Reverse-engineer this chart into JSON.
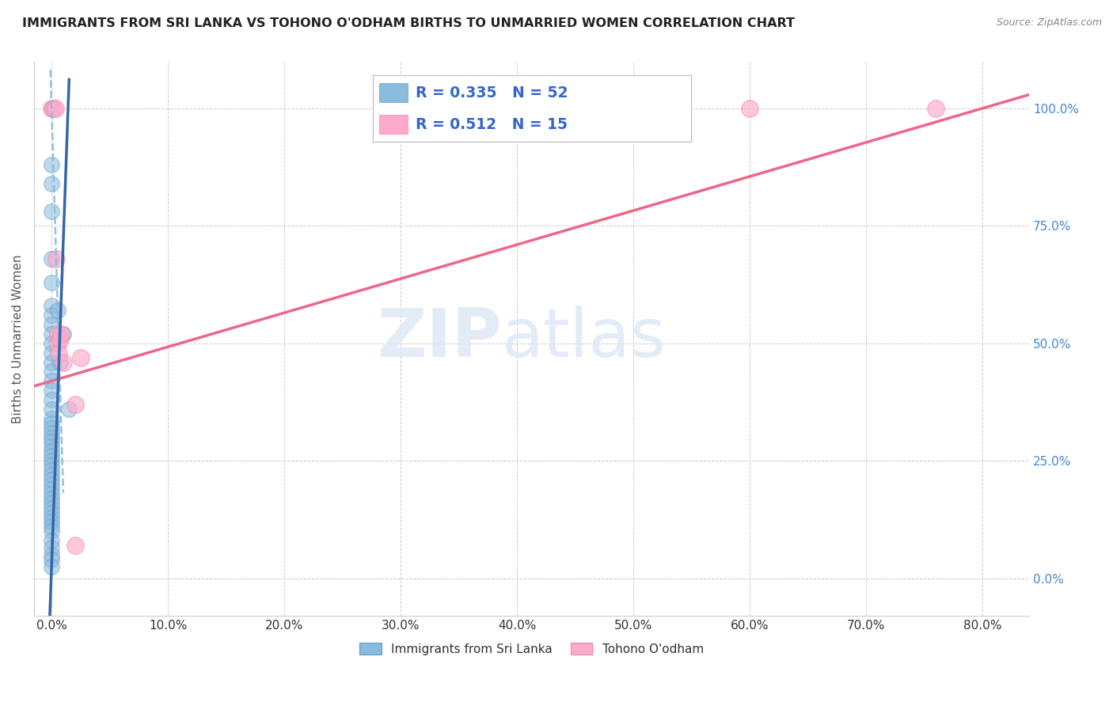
{
  "title": "IMMIGRANTS FROM SRI LANKA VS TOHONO O'ODHAM BIRTHS TO UNMARRIED WOMEN CORRELATION CHART",
  "source": "Source: ZipAtlas.com",
  "ylabel": "Births to Unmarried Women",
  "xlabel_vals": [
    0.0,
    10.0,
    20.0,
    30.0,
    40.0,
    50.0,
    60.0,
    70.0,
    80.0
  ],
  "ylabel_vals": [
    0.0,
    25.0,
    50.0,
    75.0,
    100.0
  ],
  "xlim": [
    -1.5,
    84.0
  ],
  "ylim": [
    -8.0,
    110.0
  ],
  "legend1_label": "Immigrants from Sri Lanka",
  "legend2_label": "Tohono O'odham",
  "R1": "0.335",
  "N1": "52",
  "R2": "0.512",
  "N2": "15",
  "blue_color": "#88bbdd",
  "blue_edge": "#6699cc",
  "pink_color": "#ffaacc",
  "pink_edge": "#ee88aa",
  "blue_line_color": "#3366aa",
  "pink_line_color": "#ee6688",
  "blue_scatter": [
    [
      0.0,
      100.0
    ],
    [
      0.0,
      88.0
    ],
    [
      0.0,
      84.0
    ],
    [
      0.0,
      78.0
    ],
    [
      0.0,
      68.0
    ],
    [
      0.0,
      63.0
    ],
    [
      0.0,
      58.0
    ],
    [
      0.0,
      56.0
    ],
    [
      0.0,
      54.0
    ],
    [
      0.0,
      52.0
    ],
    [
      0.0,
      50.0
    ],
    [
      0.0,
      48.0
    ],
    [
      0.0,
      46.0
    ],
    [
      0.0,
      44.0
    ],
    [
      0.0,
      42.0
    ],
    [
      0.0,
      40.0
    ],
    [
      0.0,
      38.0
    ],
    [
      0.0,
      36.0
    ],
    [
      0.0,
      34.0
    ],
    [
      0.0,
      33.0
    ],
    [
      0.0,
      32.0
    ],
    [
      0.0,
      31.0
    ],
    [
      0.0,
      30.0
    ],
    [
      0.0,
      29.0
    ],
    [
      0.0,
      28.0
    ],
    [
      0.0,
      27.0
    ],
    [
      0.0,
      26.0
    ],
    [
      0.0,
      25.0
    ],
    [
      0.0,
      24.0
    ],
    [
      0.0,
      23.0
    ],
    [
      0.0,
      22.0
    ],
    [
      0.0,
      21.0
    ],
    [
      0.0,
      20.0
    ],
    [
      0.0,
      19.0
    ],
    [
      0.0,
      18.0
    ],
    [
      0.0,
      17.0
    ],
    [
      0.0,
      16.0
    ],
    [
      0.0,
      15.0
    ],
    [
      0.0,
      14.0
    ],
    [
      0.0,
      13.0
    ],
    [
      0.0,
      12.0
    ],
    [
      0.0,
      11.0
    ],
    [
      0.0,
      10.0
    ],
    [
      0.0,
      8.0
    ],
    [
      0.0,
      6.5
    ],
    [
      0.0,
      5.0
    ],
    [
      0.0,
      4.0
    ],
    [
      0.0,
      2.5
    ],
    [
      0.5,
      57.0
    ],
    [
      0.7,
      46.0
    ],
    [
      1.0,
      52.0
    ],
    [
      1.5,
      36.0
    ]
  ],
  "pink_scatter": [
    [
      0.0,
      100.0
    ],
    [
      0.2,
      100.0
    ],
    [
      0.3,
      100.0
    ],
    [
      0.4,
      68.0
    ],
    [
      0.5,
      52.0
    ],
    [
      0.55,
      50.0
    ],
    [
      0.6,
      48.0
    ],
    [
      0.7,
      51.0
    ],
    [
      0.8,
      52.0
    ],
    [
      1.0,
      46.0
    ],
    [
      2.0,
      37.0
    ],
    [
      2.5,
      47.0
    ],
    [
      2.0,
      7.0
    ],
    [
      60.0,
      100.0
    ],
    [
      76.0,
      100.0
    ]
  ],
  "blue_solid_x1": 0.0,
  "blue_solid_y1": 3.0,
  "blue_solid_x2": 0.8,
  "blue_solid_y2": 58.0,
  "blue_dashed_x1": 0.0,
  "blue_dashed_y1": 100.0,
  "blue_dashed_x2": 0.55,
  "blue_dashed_y2": 55.0,
  "pink_solid_x1": 0.0,
  "pink_solid_y1": 42.0,
  "pink_solid_x2": 80.0,
  "pink_solid_y2": 100.0,
  "watermark_zip": "ZIP",
  "watermark_atlas": "atlas",
  "grid_color": "#cccccc",
  "background_color": "#ffffff"
}
